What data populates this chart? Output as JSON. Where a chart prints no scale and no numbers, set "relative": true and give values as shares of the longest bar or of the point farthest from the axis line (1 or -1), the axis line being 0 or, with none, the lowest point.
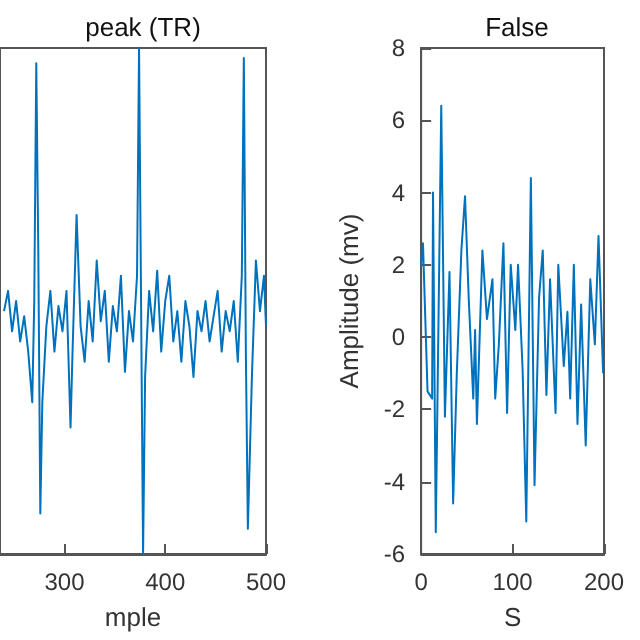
{
  "chart_data": [
    {
      "type": "line",
      "title": "peak (TR)",
      "xlabel": "mple",
      "relative": true,
      "tick_labels": "x",
      "xlim": [
        236,
        500
      ],
      "xticks": [
        300,
        400,
        500
      ],
      "grid": false,
      "marker": "none",
      "line_style": "solid",
      "series": [
        {
          "color": "#0072bd",
          "x": [
            240,
            244,
            248,
            252,
            256,
            260,
            264,
            268,
            270,
            272,
            274,
            276,
            278,
            282,
            286,
            290,
            294,
            298,
            302,
            306,
            308,
            312,
            316,
            320,
            324,
            328,
            332,
            336,
            340,
            344,
            348,
            352,
            356,
            360,
            364,
            368,
            372,
            374,
            376,
            378,
            380,
            384,
            388,
            392,
            396,
            400,
            404,
            408,
            412,
            416,
            420,
            424,
            428,
            432,
            436,
            440,
            444,
            448,
            452,
            456,
            460,
            464,
            468,
            472,
            476,
            478,
            480,
            482,
            486,
            490,
            494,
            498,
            500
          ],
          "values": [
            0.48,
            0.52,
            0.44,
            0.5,
            0.42,
            0.47,
            0.4,
            0.3,
            0.5,
            0.97,
            0.6,
            0.08,
            0.3,
            0.45,
            0.52,
            0.4,
            0.49,
            0.44,
            0.52,
            0.25,
            0.4,
            0.67,
            0.45,
            0.38,
            0.5,
            0.42,
            0.58,
            0.46,
            0.52,
            0.38,
            0.49,
            0.44,
            0.55,
            0.36,
            0.48,
            0.42,
            0.55,
            1.0,
            0.5,
            0.0,
            0.35,
            0.52,
            0.44,
            0.56,
            0.4,
            0.5,
            0.55,
            0.42,
            0.48,
            0.38,
            0.5,
            0.45,
            0.35,
            0.48,
            0.44,
            0.5,
            0.42,
            0.47,
            0.52,
            0.4,
            0.48,
            0.44,
            0.5,
            0.38,
            0.55,
            0.98,
            0.4,
            0.05,
            0.35,
            0.58,
            0.48,
            0.55,
            0.45
          ]
        }
      ]
    },
    {
      "type": "line",
      "title": "False",
      "xlabel": "S",
      "ylabel": "Amplitude (mv)",
      "xlim": [
        0,
        200
      ],
      "xticks": [
        0,
        100,
        200
      ],
      "ylim": [
        -6,
        8
      ],
      "yticks": [
        -6,
        -4,
        -2,
        0,
        2,
        4,
        6,
        8
      ],
      "grid": false,
      "marker": "none",
      "line_style": "solid",
      "series": [
        {
          "color": "#0072bd",
          "x": [
            0,
            2,
            7,
            12,
            13,
            16,
            22,
            26,
            31,
            35,
            39,
            44,
            48,
            52,
            57,
            59,
            61,
            67,
            72,
            78,
            81,
            85,
            90,
            94,
            98,
            103,
            106,
            111,
            115,
            120,
            124,
            129,
            133,
            137,
            141,
            147,
            150,
            156,
            160,
            163,
            167,
            171,
            175,
            180,
            185,
            190,
            194,
            199
          ],
          "values": [
            2.0,
            2.6,
            -1.5,
            -1.7,
            4.0,
            -5.4,
            6.4,
            -2.2,
            1.8,
            -4.6,
            -1.0,
            2.4,
            3.9,
            1.1,
            -1.7,
            0.2,
            -2.4,
            2.4,
            0.5,
            1.6,
            -1.7,
            -0.2,
            2.6,
            -2.1,
            2.0,
            0.2,
            2.0,
            -0.9,
            -5.1,
            4.4,
            -4.1,
            1.1,
            2.4,
            -1.6,
            1.6,
            -2.1,
            2.0,
            -0.8,
            0.7,
            -1.7,
            2.0,
            -2.4,
            0.9,
            -3.0,
            1.6,
            -0.2,
            2.8,
            -1.0
          ]
        }
      ]
    }
  ]
}
